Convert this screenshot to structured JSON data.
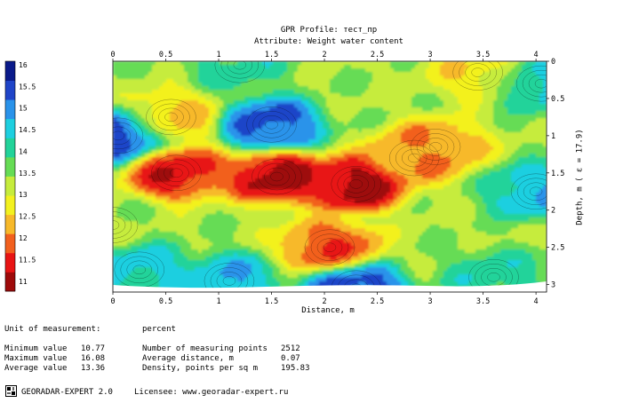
{
  "header": {
    "title": "GPR Profile: тест_пр",
    "subtitle": "Attribute:  Weight water content"
  },
  "chart_data": {
    "type": "heatmap",
    "title": "GPR Profile: тест_пр",
    "subtitle": "Attribute:  Weight water content",
    "xlabel": "Distance, m",
    "ylabel": "Depth, m ( ε = 17.9)",
    "xlim": [
      0,
      4.1
    ],
    "ylim": [
      3.1,
      0
    ],
    "x_ticks": [
      "0",
      "0.5",
      "1",
      "1.5",
      "2",
      "2.5",
      "3",
      "3.5",
      "4"
    ],
    "y_ticks": [
      "0",
      "0.5",
      "1",
      "1.5",
      "2",
      "2.5",
      "3"
    ],
    "colorbar": {
      "min": 10.77,
      "max": 16.08,
      "ticks": [
        "16",
        "15.5",
        "15",
        "14.5",
        "14",
        "13.5",
        "13",
        "12.5",
        "12",
        "11.5",
        "11"
      ],
      "colors": [
        "#9e0a0a",
        "#e81414",
        "#f2601e",
        "#f7b92a",
        "#f3f11f",
        "#c6ec3c",
        "#66dc55",
        "#22d39a",
        "#1ecfe0",
        "#2a93ea",
        "#1f44c8",
        "#0a1a8a"
      ]
    },
    "anomalies": [
      {
        "x": 0.05,
        "y": 1.0,
        "value": 15.8
      },
      {
        "x": 1.5,
        "y": 0.85,
        "value": 15.5
      },
      {
        "x": 0.55,
        "y": 0.75,
        "value": 12.4
      },
      {
        "x": 0.6,
        "y": 1.5,
        "value": 11.2
      },
      {
        "x": 1.55,
        "y": 1.55,
        "value": 10.9
      },
      {
        "x": 2.3,
        "y": 1.65,
        "value": 10.8
      },
      {
        "x": 2.05,
        "y": 2.5,
        "value": 11.6
      },
      {
        "x": 2.85,
        "y": 1.3,
        "value": 12.1
      },
      {
        "x": 3.05,
        "y": 1.15,
        "value": 12.0
      },
      {
        "x": 3.45,
        "y": 0.15,
        "value": 12.6
      },
      {
        "x": 4.05,
        "y": 0.3,
        "value": 14.6
      },
      {
        "x": 4.0,
        "y": 1.75,
        "value": 14.8
      },
      {
        "x": 1.2,
        "y": 0.05,
        "value": 14.1
      },
      {
        "x": 0.25,
        "y": 2.8,
        "value": 14.6
      },
      {
        "x": 1.1,
        "y": 2.95,
        "value": 14.8
      },
      {
        "x": 2.3,
        "y": 3.05,
        "value": 15.6
      },
      {
        "x": 3.6,
        "y": 2.9,
        "value": 14.2
      },
      {
        "x": 0.0,
        "y": 2.2,
        "value": 13.4
      }
    ]
  },
  "stats": {
    "unit_label": "Unit of measurement:",
    "unit_value": "percent",
    "min_label": "Minimum value",
    "min_value": "10.77",
    "max_label": "Maximum value",
    "max_value": "16.08",
    "avg_label": "Average value",
    "avg_value": "13.36",
    "points_label": "Number of measuring points",
    "points_value": "2512",
    "distance_label": "Average distance, m",
    "distance_value": "0.07",
    "density_label": "Density, points per sq m",
    "density_value": "195.83"
  },
  "footer": {
    "product": "GEORADAR-EXPERT 2.0",
    "licensee": "Licensee: www.georadar-expert.ru"
  },
  "icons": {
    "logo": "georadar-logo-icon"
  }
}
